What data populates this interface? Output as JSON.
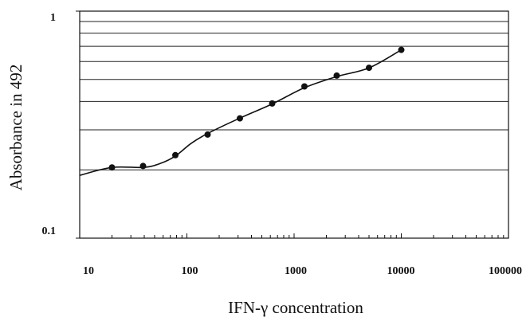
{
  "chart_data": {
    "type": "line",
    "title": "",
    "xlabel": "IFN-γ concentration",
    "ylabel": "Absorbance in 492",
    "x_scale": "log",
    "y_scale": "log",
    "xlim": [
      10,
      100000
    ],
    "ylim": [
      0.1,
      1
    ],
    "x_tick_labels": [
      "10",
      "100",
      "1000",
      "10000",
      "100000"
    ],
    "y_tick_labels": [
      "0.1",
      "1"
    ],
    "grid": "horizontal",
    "legend": "none",
    "series": [
      {
        "x": [
          20,
          39,
          78,
          156,
          312,
          625,
          1250,
          2500,
          5000,
          10000
        ],
        "y": [
          0.205,
          0.208,
          0.232,
          0.286,
          0.337,
          0.392,
          0.466,
          0.52,
          0.563,
          0.675
        ]
      }
    ],
    "trend_line_x": [
      10,
      20,
      39,
      56,
      78,
      110,
      156,
      312,
      625,
      1250,
      2500,
      5000,
      10000
    ],
    "trend_line_y": [
      0.189,
      0.205,
      0.205,
      0.213,
      0.23,
      0.262,
      0.289,
      0.338,
      0.39,
      0.46,
      0.515,
      0.562,
      0.675
    ],
    "gridline_y": [
      0.2,
      0.3,
      0.4,
      0.5,
      0.6,
      0.7,
      0.8,
      0.9
    ],
    "colors": {
      "line": "#111111",
      "marker": "#111111",
      "grid": "#222222",
      "background": "#ffffff"
    }
  }
}
